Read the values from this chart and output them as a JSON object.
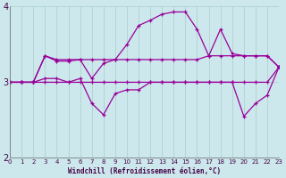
{
  "xlabel": "Windchill (Refroidissement éolien,°C)",
  "background_color": "#cce8ec",
  "line_color": "#990099",
  "grid_color": "#aacccc",
  "xlim": [
    0,
    23
  ],
  "ylim": [
    2,
    4
  ],
  "yticks": [
    2,
    3,
    4
  ],
  "xticks": [
    0,
    1,
    2,
    3,
    4,
    5,
    6,
    7,
    8,
    9,
    10,
    11,
    12,
    13,
    14,
    15,
    16,
    17,
    18,
    19,
    20,
    21,
    22,
    23
  ],
  "series": [
    [
      3.0,
      3.0,
      3.0,
      3.0,
      3.0,
      3.0,
      3.0,
      3.0,
      3.0,
      3.0,
      3.0,
      3.0,
      3.0,
      3.0,
      3.0,
      3.0,
      3.0,
      3.0,
      3.0,
      3.0,
      3.0,
      3.0,
      3.0,
      3.2
    ],
    [
      3.0,
      3.0,
      3.0,
      3.35,
      3.3,
      3.3,
      3.3,
      3.3,
      3.3,
      3.3,
      3.3,
      3.3,
      3.3,
      3.3,
      3.3,
      3.3,
      3.3,
      3.35,
      3.35,
      3.35,
      3.35,
      3.35,
      3.35,
      3.2
    ],
    [
      3.0,
      3.0,
      3.0,
      3.35,
      3.28,
      3.28,
      3.3,
      3.05,
      3.25,
      3.3,
      3.5,
      3.75,
      3.82,
      3.9,
      3.93,
      3.93,
      3.7,
      3.35,
      3.7,
      3.38,
      3.35,
      3.35,
      3.35,
      3.2
    ],
    [
      3.0,
      3.0,
      3.0,
      3.05,
      3.05,
      3.0,
      3.05,
      2.72,
      2.57,
      2.85,
      2.9,
      2.9,
      3.0,
      3.0,
      3.0,
      3.0,
      3.0,
      3.0,
      3.0,
      3.0,
      2.55,
      2.72,
      2.83,
      3.2
    ]
  ]
}
